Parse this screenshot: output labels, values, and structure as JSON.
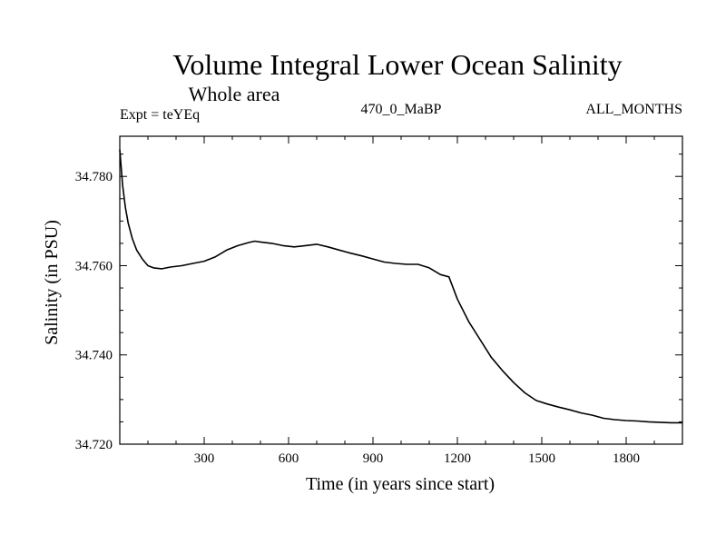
{
  "chart_data": {
    "type": "line",
    "title": "Volume Integral Lower Ocean Salinity",
    "subtitle": "Whole area",
    "header": {
      "left": "Expt = teYEq",
      "center": "470_0_MaBP",
      "right": "ALL_MONTHS"
    },
    "xlabel": "Time (in years since start)",
    "ylabel": "Salinity (in PSU)",
    "xlim": [
      0,
      2000
    ],
    "ylim": [
      34.72,
      34.789
    ],
    "x_ticks": [
      300,
      600,
      900,
      1200,
      1500,
      1800
    ],
    "x_tick_labels": [
      "300",
      "600",
      "900",
      "1200",
      "1500",
      "1800"
    ],
    "y_ticks": [
      34.72,
      34.74,
      34.76,
      34.78
    ],
    "y_tick_labels": [
      "34.720",
      "34.740",
      "34.760",
      "34.780"
    ],
    "grid": false,
    "series": [
      {
        "name": "Salinity",
        "color": "#000000",
        "x": [
          0,
          10,
          20,
          30,
          45,
          60,
          80,
          100,
          120,
          150,
          180,
          220,
          260,
          300,
          340,
          380,
          420,
          460,
          480,
          500,
          540,
          580,
          620,
          660,
          700,
          740,
          780,
          820,
          860,
          900,
          940,
          980,
          1020,
          1060,
          1100,
          1140,
          1170,
          1200,
          1240,
          1280,
          1320,
          1360,
          1400,
          1440,
          1480,
          1520,
          1560,
          1600,
          1640,
          1680,
          1720,
          1760,
          1800,
          1840,
          1880,
          1920,
          1960,
          2000
        ],
        "y": [
          34.786,
          34.778,
          34.773,
          34.7695,
          34.766,
          34.7635,
          34.7615,
          34.76,
          34.7595,
          34.7593,
          34.7597,
          34.76,
          34.7605,
          34.761,
          34.762,
          34.7635,
          34.7645,
          34.7652,
          34.7655,
          34.7653,
          34.765,
          34.7645,
          34.7642,
          34.7645,
          34.7648,
          34.7642,
          34.7635,
          34.7628,
          34.7622,
          34.7615,
          34.7608,
          34.7605,
          34.7603,
          34.7603,
          34.7595,
          34.758,
          34.7575,
          34.7525,
          34.7475,
          34.7435,
          34.7395,
          34.7365,
          34.7338,
          34.7315,
          34.7298,
          34.729,
          34.7283,
          34.7277,
          34.727,
          34.7265,
          34.7258,
          34.7255,
          34.7253,
          34.7252,
          34.725,
          34.7249,
          34.7248,
          34.7248
        ]
      }
    ]
  }
}
